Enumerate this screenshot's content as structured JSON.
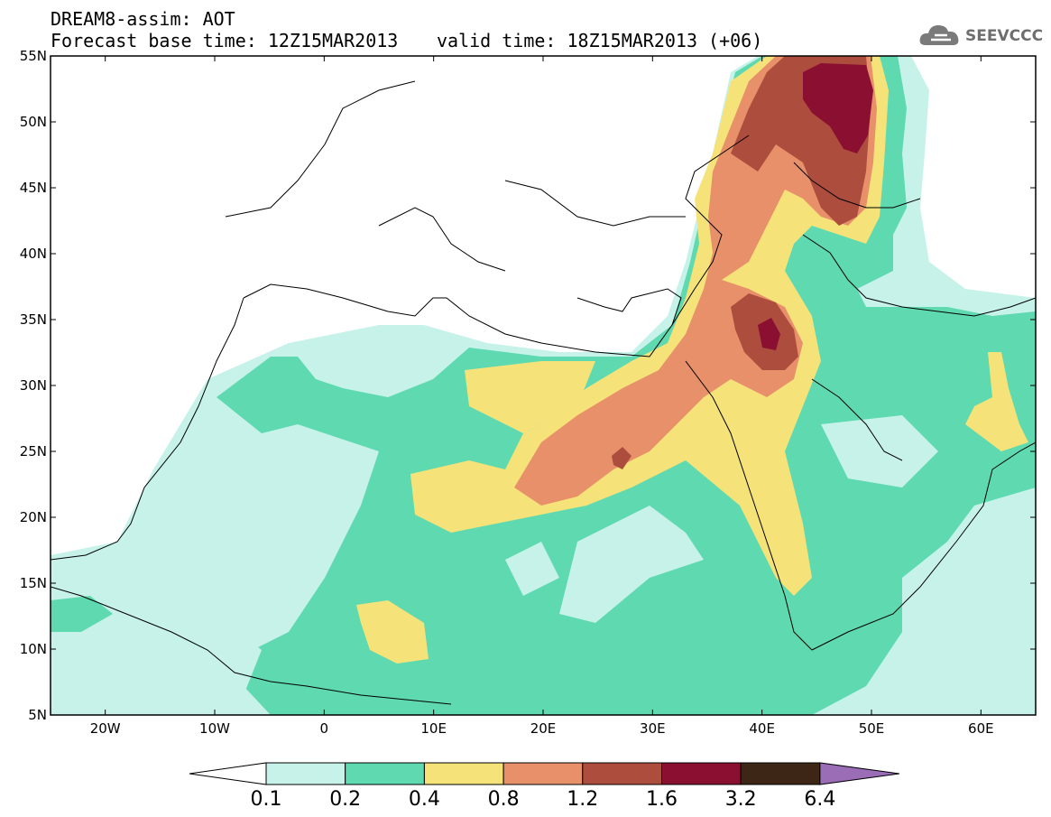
{
  "header": {
    "title_line1": "DREAM8-assim: AOT",
    "base_time": "Forecast base time: 12Z15MAR2013",
    "valid_time": "valid time: 18Z15MAR2013 (+06)"
  },
  "logo": {
    "text": "SEEVCCC",
    "icon": "cloud-icon"
  },
  "map": {
    "lat_labels": [
      "55N",
      "50N",
      "45N",
      "40N",
      "35N",
      "30N",
      "25N",
      "20N",
      "15N",
      "10N",
      "5N"
    ],
    "lon_labels": [
      "20W",
      "10W",
      "0",
      "10E",
      "20E",
      "30E",
      "40E",
      "50E",
      "60E"
    ],
    "extent": {
      "lon": [
        -25,
        65
      ],
      "lat": [
        5,
        55
      ]
    }
  },
  "colorbar": {
    "labels": [
      "0.1",
      "0.2",
      "0.4",
      "0.8",
      "1.2",
      "1.6",
      "3.2",
      "6.4"
    ],
    "colors": [
      "#c7f2ea",
      "#5ed9b0",
      "#f5e37a",
      "#e8906a",
      "#ad4d3e",
      "#8a0f31",
      "#3d2616"
    ],
    "end_colors": {
      "low": "#ffffff",
      "high": "#9b6db7"
    }
  }
}
